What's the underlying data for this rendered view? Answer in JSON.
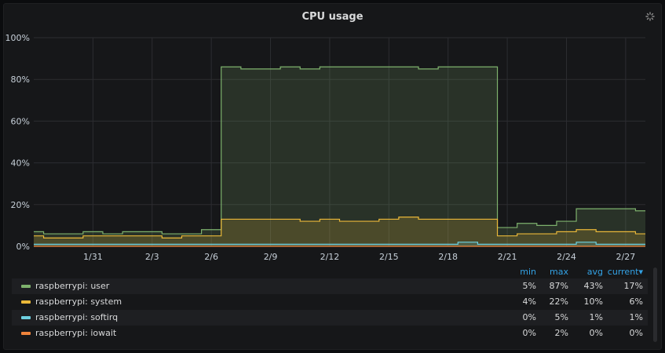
{
  "chart_data": {
    "type": "area",
    "title": "CPU usage",
    "x_ticks": [
      "1/31",
      "2/3",
      "2/6",
      "2/9",
      "2/12",
      "2/15",
      "2/18",
      "2/21",
      "2/24",
      "2/27"
    ],
    "y_ticks": [
      "0%",
      "20%",
      "40%",
      "60%",
      "80%",
      "100%"
    ],
    "ylim": [
      0,
      100
    ],
    "xlim": [
      "1/28",
      "2/28"
    ],
    "grid": true,
    "legend_position": "bottom",
    "stacked": false,
    "x": [
      "1/28",
      "1/29",
      "1/30",
      "1/31",
      "2/1",
      "2/2",
      "2/3",
      "2/4",
      "2/5",
      "2/6",
      "2/7",
      "2/8",
      "2/9",
      "2/10",
      "2/11",
      "2/12",
      "2/13",
      "2/14",
      "2/15",
      "2/16",
      "2/17",
      "2/18",
      "2/19",
      "2/20",
      "2/21",
      "2/22",
      "2/23",
      "2/24",
      "2/25",
      "2/26",
      "2/27",
      "2/28"
    ],
    "series": [
      {
        "name": "raspberrypi: user",
        "color": "#7eb26d",
        "values": [
          7,
          6,
          6,
          7,
          6,
          7,
          7,
          6,
          6,
          8,
          86,
          85,
          85,
          86,
          85,
          86,
          86,
          86,
          86,
          86,
          85,
          86,
          86,
          86,
          9,
          11,
          10,
          12,
          18,
          18,
          18,
          17
        ]
      },
      {
        "name": "raspberrypi: system",
        "color": "#eab839",
        "values": [
          5,
          4,
          4,
          5,
          5,
          5,
          5,
          4,
          5,
          5,
          13,
          13,
          13,
          13,
          12,
          13,
          12,
          12,
          13,
          14,
          13,
          13,
          13,
          13,
          5,
          6,
          6,
          7,
          8,
          7,
          7,
          6
        ]
      },
      {
        "name": "raspberrypi: softirq",
        "color": "#6ed0e0",
        "values": [
          1,
          1,
          1,
          1,
          1,
          1,
          1,
          1,
          1,
          1,
          1,
          1,
          1,
          1,
          1,
          1,
          1,
          1,
          1,
          1,
          1,
          1,
          2,
          1,
          1,
          1,
          1,
          1,
          2,
          1,
          1,
          1
        ]
      },
      {
        "name": "raspberrypi: iowait",
        "color": "#ef843c",
        "values": [
          0,
          0,
          0,
          0,
          0,
          0,
          0,
          0,
          0,
          0,
          0,
          0,
          0,
          0,
          0,
          0,
          0,
          0,
          0,
          0,
          0,
          0,
          0,
          0,
          0,
          0,
          0,
          0,
          0,
          0,
          0,
          0
        ]
      }
    ],
    "legend_table": {
      "headers": [
        "min",
        "max",
        "avg",
        "current▾"
      ],
      "rows": [
        {
          "name": "raspberrypi: user",
          "min": "5%",
          "max": "87%",
          "avg": "43%",
          "current": "17%",
          "swatch": "#7eb26d"
        },
        {
          "name": "raspberrypi: system",
          "min": "4%",
          "max": "22%",
          "avg": "10%",
          "current": "6%",
          "swatch": "#eab839"
        },
        {
          "name": "raspberrypi: softirq",
          "min": "0%",
          "max": "5%",
          "avg": "1%",
          "current": "1%",
          "swatch": "#6ed0e0"
        },
        {
          "name": "raspberrypi: iowait",
          "min": "0%",
          "max": "2%",
          "avg": "0%",
          "current": "0%",
          "swatch": "#ef843c"
        }
      ]
    }
  }
}
